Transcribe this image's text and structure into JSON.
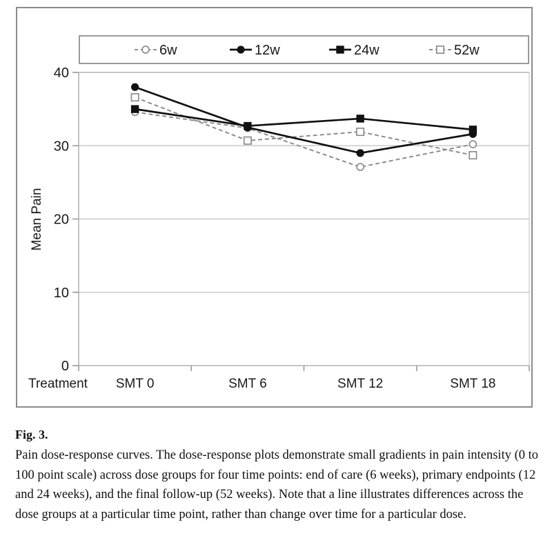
{
  "figure": {
    "caption_title": "Fig. 3.",
    "caption_body": "Pain dose-response curves. The dose-response plots demonstrate small gradients in pain intensity (0 to 100 point scale) across dose groups for four time points: end of care (6 weeks), primary endpoints (12 and 24 weeks), and the final follow-up (52 weeks). Note that a line illustrates differences across the dose groups at a particular time point, rather than change over time for a particular dose."
  },
  "chart_data": {
    "type": "line",
    "title": "",
    "xlabel": "Treatment",
    "ylabel": "Mean Pain",
    "categories": [
      "SMT 0",
      "SMT 6",
      "SMT 12",
      "SMT 18"
    ],
    "ylim": [
      0,
      40
    ],
    "yticks": [
      0,
      10,
      20,
      30,
      40
    ],
    "grid": "horizontal",
    "legend_position": "top",
    "series": [
      {
        "name": "6w",
        "values": [
          34.6,
          32.4,
          27.1,
          30.2
        ],
        "line": "dashed",
        "color": "#8c8c8c",
        "marker": "open-circle"
      },
      {
        "name": "12w",
        "values": [
          38.0,
          32.5,
          29.0,
          31.6
        ],
        "line": "solid",
        "color": "#111111",
        "marker": "filled-circle"
      },
      {
        "name": "24w",
        "values": [
          35.0,
          32.7,
          33.7,
          32.2
        ],
        "line": "solid",
        "color": "#111111",
        "marker": "filled-square"
      },
      {
        "name": "52w",
        "values": [
          36.6,
          30.7,
          31.9,
          28.7
        ],
        "line": "dashed",
        "color": "#8c8c8c",
        "marker": "open-square"
      }
    ],
    "colors": {
      "background": "#ffffff",
      "grid": "#c9c9c9",
      "axis": "#b3b3b3",
      "tick": "#999999",
      "text": "#1a1a1a",
      "legend_border": "#9a9a9a",
      "figure_border": "#8b8b8b"
    }
  }
}
